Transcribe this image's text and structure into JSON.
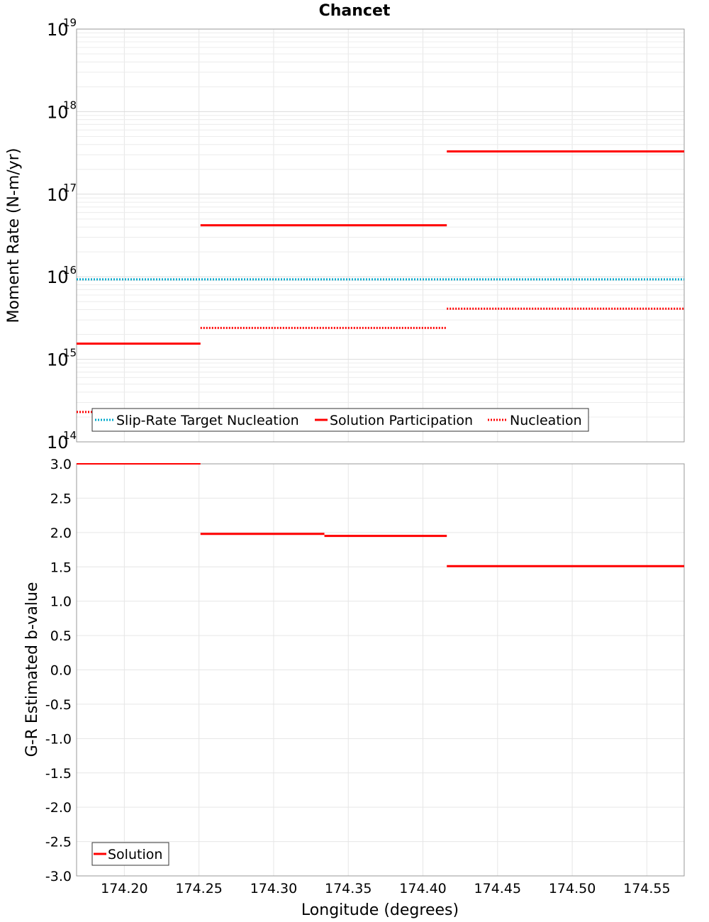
{
  "chart_data": [
    {
      "type": "line",
      "title": "Chancet",
      "xlabel": "",
      "ylabel": "Moment Rate (N-m/yr)",
      "yscale": "log",
      "ylim_exponents": [
        14,
        19
      ],
      "ytick_base": "10",
      "ytick_exponents": [
        "14",
        "15",
        "16",
        "17",
        "18",
        "19"
      ],
      "xlim": [
        174.168,
        174.575
      ],
      "grid": true,
      "legend_position": "bottom-left",
      "legend": [
        "Slip-Rate Target Nucleation",
        "Solution Participation",
        "Nucleation"
      ],
      "series": [
        {
          "name": "Slip-Rate Target Nucleation",
          "color": "#00aacc",
          "style": "dotted",
          "segments": [
            {
              "x": [
                174.168,
                174.575
              ],
              "y": 9300000000000000.0
            }
          ]
        },
        {
          "name": "Solution Participation",
          "color": "#ff0000",
          "style": "solid",
          "segments": [
            {
              "x": [
                174.168,
                174.251
              ],
              "y": 1550000000000000.0
            },
            {
              "x": [
                174.251,
                174.416
              ],
              "y": 4.2e+16
            },
            {
              "x": [
                174.416,
                174.575
              ],
              "y": 3.3e+17
            }
          ]
        },
        {
          "name": "Nucleation",
          "color": "#ff0000",
          "style": "dotted",
          "segments": [
            {
              "x": [
                174.168,
                174.251
              ],
              "y": 230000000000000.0
            },
            {
              "x": [
                174.251,
                174.416
              ],
              "y": 2400000000000000.0
            },
            {
              "x": [
                174.416,
                174.575
              ],
              "y": 4100000000000000.0
            }
          ]
        }
      ]
    },
    {
      "type": "line",
      "title": "",
      "xlabel": "Longitude (degrees)",
      "ylabel": "G-R Estimated b-value",
      "ylim": [
        -3.0,
        3.0
      ],
      "xlim": [
        174.168,
        174.575
      ],
      "ytick_labels": [
        "3.0",
        "2.5",
        "2.0",
        "1.5",
        "1.0",
        "0.5",
        "0.0",
        "-0.5",
        "-1.0",
        "-1.5",
        "-2.0",
        "-2.5",
        "-3.0"
      ],
      "xtick_labels": [
        "174.20",
        "174.25",
        "174.30",
        "174.35",
        "174.40",
        "174.45",
        "174.50",
        "174.55"
      ],
      "grid": true,
      "legend_position": "bottom-left",
      "legend": [
        "Solution"
      ],
      "series": [
        {
          "name": "Solution",
          "color": "#ff0000",
          "style": "solid",
          "segments": [
            {
              "x": [
                174.168,
                174.251
              ],
              "y": 3.0
            },
            {
              "x": [
                174.251,
                174.334
              ],
              "y": 1.98
            },
            {
              "x": [
                174.334,
                174.416
              ],
              "y": 1.95
            },
            {
              "x": [
                174.416,
                174.575
              ],
              "y": 1.51
            }
          ]
        }
      ]
    }
  ]
}
